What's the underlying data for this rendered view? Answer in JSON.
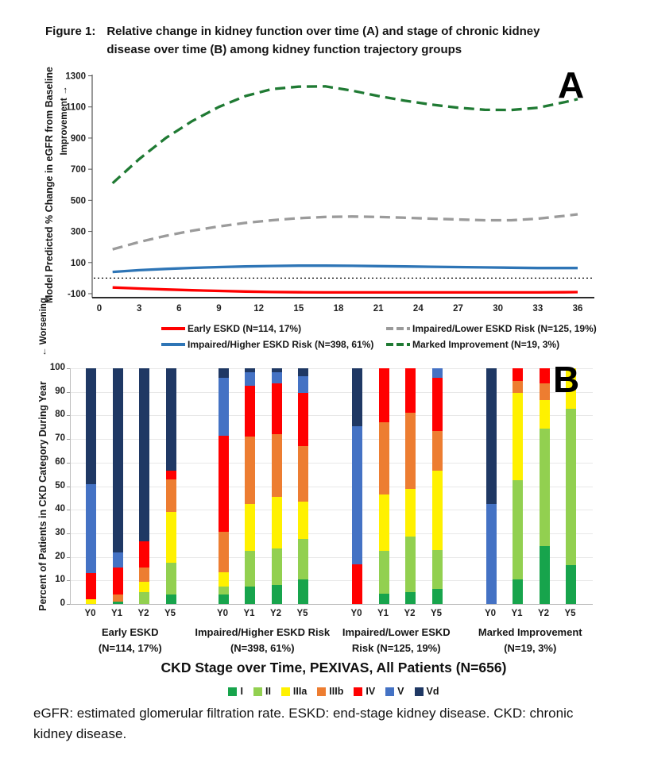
{
  "figure": {
    "label": "Figure 1:",
    "title": "Relative change in kidney function over time (A) and stage of chronic kidney disease over time (B) among kidney function trajectory groups"
  },
  "panelA": {
    "panel_letter": "A",
    "y_axis_label": "Model Predicted % Change in eGFR from Baseline",
    "improvement_label": "Improvement →",
    "worsening_label": "← Worsening",
    "legend": [
      {
        "label": "Early ESKD (N=114, 17%)",
        "color": "#FF0000",
        "dashed": false
      },
      {
        "label": "Impaired/Lower ESKD Risk (N=125, 19%)",
        "color": "#9B9B9B",
        "dashed": true
      },
      {
        "label": "Impaired/Higher ESKD Risk (N=398, 61%)",
        "color": "#2E75B6",
        "dashed": false
      },
      {
        "label": "Marked Improvement (N=19, 3%)",
        "color": "#1F7A33",
        "dashed": true
      }
    ]
  },
  "panelB": {
    "panel_letter": "B",
    "y_axis_label": "Percent of Patients in CKD Category During Year",
    "title": "CKD Stage over Time, PEXIVAS, All Patients (N=656)"
  },
  "footer": "eGFR: estimated glomerular filtration rate. ESKD: end-stage kidney disease. CKD: chronic kidney disease.",
  "chart_data": [
    {
      "type": "line",
      "panel": "A",
      "ylabel": "Model Predicted % Change in eGFR from Baseline",
      "xlabel": "",
      "ylim": [
        -100,
        1300
      ],
      "y_ticks": [
        1300,
        1100,
        900,
        700,
        500,
        300,
        100,
        -100
      ],
      "x_ticks": [
        0,
        3,
        6,
        9,
        12,
        15,
        18,
        21,
        24,
        27,
        30,
        33,
        36
      ],
      "reference_line_y": 0,
      "grid": false,
      "legend_position": "bottom",
      "x": [
        1,
        3,
        5,
        7,
        9,
        11,
        13,
        15,
        17,
        19,
        21,
        23,
        25,
        27,
        29,
        31,
        33,
        35,
        36
      ],
      "series": [
        {
          "name": "Early ESKD (N=114, 17%)",
          "color": "#FF0000",
          "style": "solid",
          "y": [
            -60,
            -67,
            -73,
            -78,
            -82,
            -86,
            -89,
            -91,
            -92,
            -92,
            -92,
            -92,
            -92,
            -92,
            -92,
            -92,
            -92,
            -91,
            -90
          ]
        },
        {
          "name": "Impaired/Higher ESKD Risk (N=398, 61%)",
          "color": "#2E75B6",
          "style": "solid",
          "y": [
            40,
            51,
            59,
            66,
            71,
            75,
            78,
            80,
            80,
            79,
            77,
            75,
            73,
            71,
            69,
            67,
            65,
            65,
            65
          ]
        },
        {
          "name": "Impaired/Lower ESKD Risk (N=125, 19%)",
          "color": "#9B9B9B",
          "style": "dashed",
          "y": [
            185,
            232,
            272,
            305,
            332,
            355,
            372,
            385,
            393,
            396,
            393,
            388,
            382,
            377,
            372,
            372,
            382,
            400,
            410
          ]
        },
        {
          "name": "Marked Improvement (N=19, 3%)",
          "color": "#1F7A33",
          "style": "dashed",
          "y": [
            610,
            765,
            900,
            1010,
            1100,
            1170,
            1215,
            1230,
            1232,
            1205,
            1170,
            1140,
            1115,
            1095,
            1082,
            1080,
            1095,
            1130,
            1150
          ]
        }
      ]
    },
    {
      "type": "stacked_bar",
      "panel": "B",
      "title": "CKD Stage over Time, PEXIVAS, All Patients (N=656)",
      "ylabel": "Percent of Patients in CKD Category During Year",
      "ylim": [
        0,
        100
      ],
      "y_ticks": [
        0,
        10,
        20,
        30,
        40,
        50,
        60,
        70,
        80,
        90,
        100
      ],
      "grid": true,
      "stages": [
        "I",
        "II",
        "IIIa",
        "IIIb",
        "IV",
        "V",
        "Vd"
      ],
      "stage_colors": {
        "I": "#17A44C",
        "II": "#92D050",
        "IIIa": "#FFF100",
        "IIIb": "#ED7D31",
        "IV": "#FF0000",
        "V": "#4472C4",
        "Vd": "#1F3864"
      },
      "groups": [
        {
          "label_line1": "Early ESKD",
          "label_line2": "(N=114, 17%)",
          "bars": [
            {
              "x": "Y0",
              "values": {
                "IIIa": 2,
                "IV": 11,
                "V": 38,
                "Vd": 49
              }
            },
            {
              "x": "Y1",
              "values": {
                "I": 1,
                "IIIb": 3,
                "IV": 11.5,
                "V": 6.5,
                "Vd": 78
              }
            },
            {
              "x": "Y2",
              "values": {
                "II": 5,
                "IIIa": 4.5,
                "IIIb": 6,
                "IV": 11,
                "Vd": 73.5
              }
            },
            {
              "x": "Y5",
              "values": {
                "I": 4,
                "II": 13.5,
                "IIIa": 21.5,
                "IIIb": 14,
                "IV": 3.5,
                "Vd": 43.5
              }
            }
          ]
        },
        {
          "label_line1": "Impaired/Higher ESKD Risk",
          "label_line2": "(N=398, 61%)",
          "bars": [
            {
              "x": "Y0",
              "values": {
                "I": 4,
                "II": 3.5,
                "IIIa": 6,
                "IIIb": 17,
                "IV": 41,
                "V": 24.5,
                "Vd": 4
              }
            },
            {
              "x": "Y1",
              "values": {
                "I": 7.5,
                "II": 15,
                "IIIa": 20,
                "IIIb": 28.5,
                "IV": 21.5,
                "V": 6,
                "Vd": 1.5
              }
            },
            {
              "x": "Y2",
              "values": {
                "I": 8,
                "II": 15.5,
                "IIIa": 22,
                "IIIb": 26.5,
                "IV": 21.5,
                "V": 5,
                "Vd": 1.5
              }
            },
            {
              "x": "Y5",
              "values": {
                "I": 10.5,
                "II": 17,
                "IIIa": 16,
                "IIIb": 23.5,
                "IV": 22.5,
                "V": 7,
                "Vd": 3.5
              }
            }
          ]
        },
        {
          "label_line1": "Impaired/Lower ESKD",
          "label_line2": "Risk (N=125, 19%)",
          "bars": [
            {
              "x": "Y0",
              "values": {
                "IV": 17,
                "V": 58.5,
                "Vd": 24.5
              }
            },
            {
              "x": "Y1",
              "values": {
                "I": 4.5,
                "II": 18,
                "IIIa": 24,
                "IIIb": 30.5,
                "IV": 23
              }
            },
            {
              "x": "Y2",
              "values": {
                "I": 5,
                "II": 23.5,
                "IIIa": 20.5,
                "IIIb": 32,
                "IV": 19
              }
            },
            {
              "x": "Y5",
              "values": {
                "I": 6.5,
                "II": 16.5,
                "IIIa": 33.5,
                "IIIb": 17,
                "IV": 22.5,
                "V": 4
              }
            }
          ]
        },
        {
          "label_line1": "Marked Improvement",
          "label_line2": "(N=19, 3%)",
          "bars": [
            {
              "x": "Y0",
              "values": {
                "V": 42.5,
                "Vd": 57.5
              }
            },
            {
              "x": "Y1",
              "values": {
                "I": 10.5,
                "II": 42,
                "IIIa": 37,
                "IIIb": 5,
                "IV": 5.5
              }
            },
            {
              "x": "Y2",
              "values": {
                "I": 24.5,
                "II": 50,
                "IIIa": 12,
                "IIIb": 7,
                "IV": 6.5
              }
            },
            {
              "x": "Y5",
              "values": {
                "I": 16.5,
                "II": 66.5,
                "IIIa": 17
              }
            }
          ]
        }
      ]
    }
  ]
}
